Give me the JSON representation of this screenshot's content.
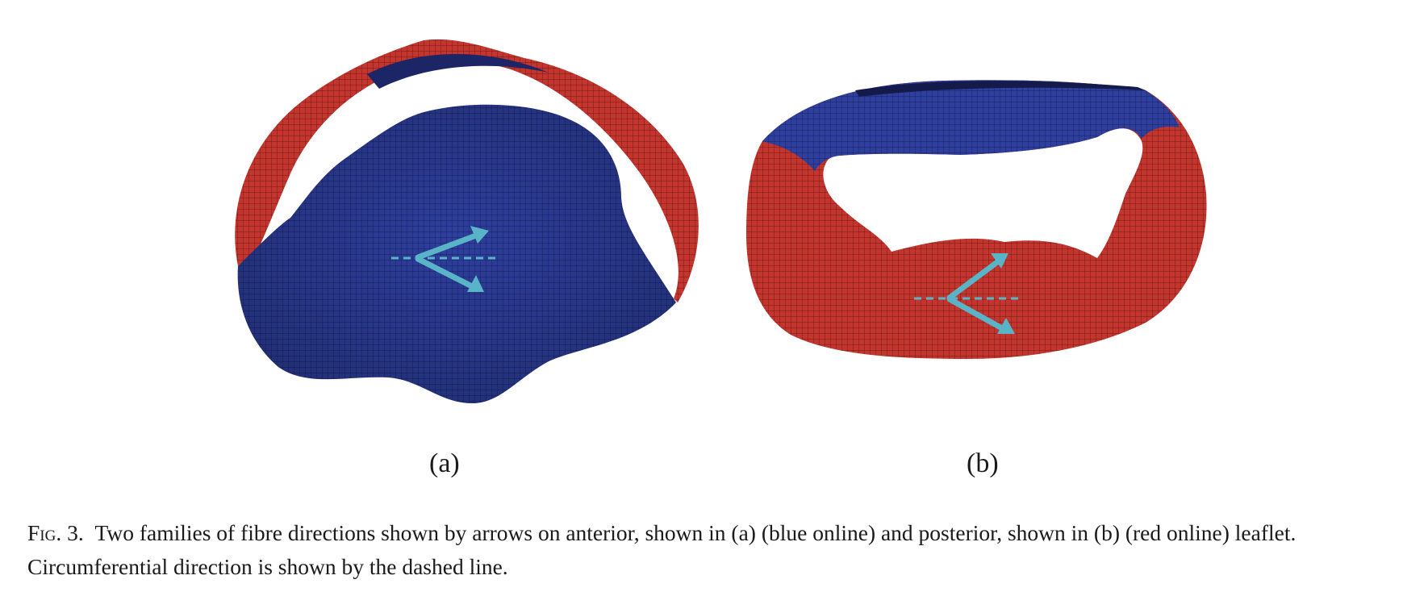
{
  "figure": {
    "panels": [
      {
        "id": "a",
        "label": "(a)",
        "leaflet": "anterior",
        "color": "#2e3f9e",
        "ring_color": "#c4352e"
      },
      {
        "id": "b",
        "label": "(b)",
        "leaflet": "posterior",
        "color": "#c4352e",
        "ring_color": "#2e3f9e"
      }
    ],
    "arrow_color": "#5ab4c8"
  },
  "caption": {
    "fig_label": "Fig",
    "fig_number": ". 3.",
    "text": "Two families of fibre directions shown by arrows on anterior, shown in (a) (blue online) and posterior, shown in (b) (red online) leaflet. Circumferential direction is shown by the dashed line."
  }
}
